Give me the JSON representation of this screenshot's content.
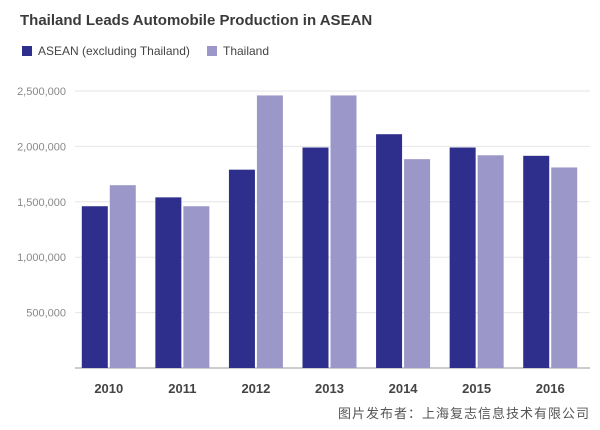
{
  "chart_data": {
    "type": "bar",
    "title": "Thailand Leads Automobile Production in ASEAN",
    "categories": [
      "2010",
      "2011",
      "2012",
      "2013",
      "2014",
      "2015",
      "2016"
    ],
    "series": [
      {
        "name": "ASEAN (excluding Thailand)",
        "color": "#2e2e8c",
        "values": [
          1460000,
          1540000,
          1790000,
          1990000,
          2110000,
          1990000,
          1915000
        ]
      },
      {
        "name": "Thailand",
        "color": "#9b98c9",
        "values": [
          1650000,
          1460000,
          2460000,
          2460000,
          1885000,
          1920000,
          1810000
        ]
      }
    ],
    "yticks": [
      "2,500,000",
      "2,000,000",
      "1,500,000",
      "1,000,000",
      "500,000"
    ],
    "ytick_values": [
      2500000,
      2000000,
      1500000,
      1000000,
      500000
    ],
    "ylim": [
      0,
      2700000
    ],
    "grid": true,
    "legend": "top-left"
  },
  "footer_text": "图片发布者：上海复志信息技术有限公司"
}
